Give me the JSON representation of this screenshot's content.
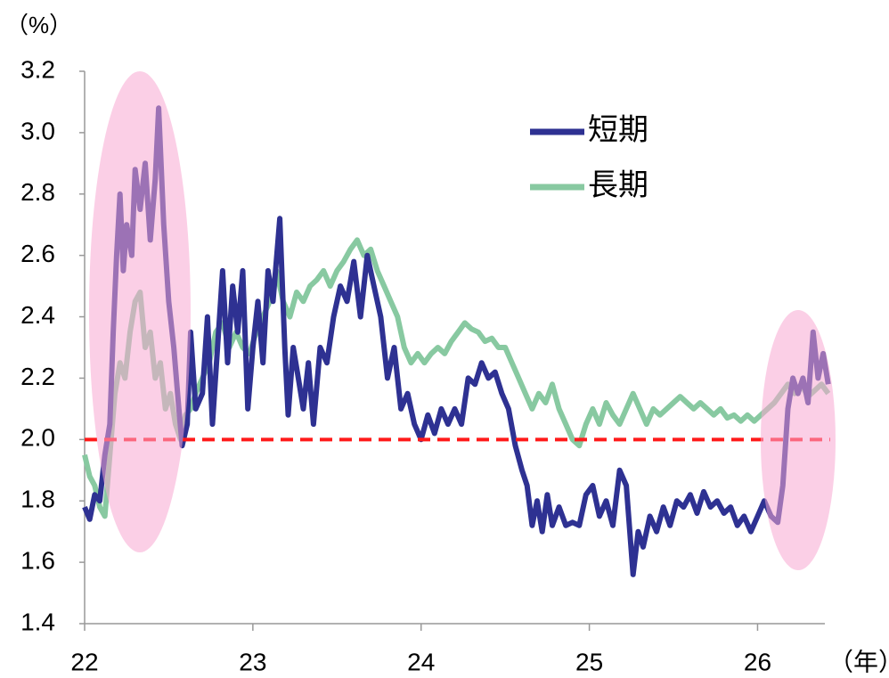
{
  "chart_data": {
    "type": "line",
    "y_label": "（%）",
    "x_label": "（年）",
    "xlim": [
      22,
      26.4
    ],
    "xticks": [
      22,
      23,
      24,
      25,
      26
    ],
    "ylim": [
      1.4,
      3.2
    ],
    "yticks": [
      {
        "value": 1.4,
        "label": "1.4"
      },
      {
        "value": 1.6,
        "label": "1.6"
      },
      {
        "value": 1.8,
        "label": "1.8"
      },
      {
        "value": 2,
        "label": "2.0"
      },
      {
        "value": 2.2,
        "label": "2.2"
      },
      {
        "value": 2.4,
        "label": "2.4"
      },
      {
        "value": 2.6,
        "label": "2.6"
      },
      {
        "value": 2.8,
        "label": "2.8"
      },
      {
        "value": 3,
        "label": "3.0"
      },
      {
        "value": 3.2,
        "label": "3.2"
      }
    ],
    "reference_line": {
      "value": 2,
      "color": "#ff1a1a"
    },
    "series": [
      {
        "name": "短期",
        "color": "#2e3192",
        "x": [
          22.0,
          22.03,
          22.06,
          22.09,
          22.12,
          22.15,
          22.17,
          22.19,
          22.21,
          22.23,
          22.25,
          22.28,
          22.3,
          22.33,
          22.36,
          22.39,
          22.42,
          22.44,
          22.47,
          22.5,
          22.53,
          22.56,
          22.58,
          22.61,
          22.63,
          22.66,
          22.7,
          22.73,
          22.76,
          22.79,
          22.82,
          22.85,
          22.88,
          22.91,
          22.94,
          22.97,
          23.0,
          23.03,
          23.06,
          23.09,
          23.12,
          23.16,
          23.19,
          23.21,
          23.24,
          23.27,
          23.3,
          23.33,
          23.36,
          23.4,
          23.44,
          23.48,
          23.52,
          23.56,
          23.6,
          23.64,
          23.68,
          23.72,
          23.76,
          23.8,
          23.84,
          23.88,
          23.92,
          23.96,
          24.0,
          24.04,
          24.08,
          24.12,
          24.16,
          24.2,
          24.24,
          24.28,
          24.32,
          24.36,
          24.4,
          24.44,
          24.48,
          24.52,
          24.56,
          24.6,
          24.63,
          24.66,
          24.69,
          24.72,
          24.75,
          24.78,
          24.82,
          24.86,
          24.9,
          24.94,
          24.98,
          25.02,
          25.06,
          25.1,
          25.14,
          25.18,
          25.22,
          25.26,
          25.29,
          25.32,
          25.36,
          25.4,
          25.44,
          25.48,
          25.52,
          25.56,
          25.6,
          25.64,
          25.68,
          25.72,
          25.76,
          25.8,
          25.84,
          25.88,
          25.92,
          25.96,
          26.0,
          26.04,
          26.08,
          26.12,
          26.15,
          26.18,
          26.21,
          26.24,
          26.27,
          26.3,
          26.33,
          26.36,
          26.39,
          26.42
        ],
        "values": [
          1.78,
          1.74,
          1.82,
          1.8,
          1.95,
          2.05,
          2.35,
          2.6,
          2.8,
          2.55,
          2.7,
          2.6,
          2.88,
          2.75,
          2.9,
          2.65,
          2.85,
          3.08,
          2.7,
          2.45,
          2.3,
          2.1,
          1.98,
          2.05,
          2.35,
          2.1,
          2.15,
          2.4,
          2.05,
          2.3,
          2.55,
          2.25,
          2.5,
          2.35,
          2.55,
          2.1,
          2.3,
          2.45,
          2.25,
          2.55,
          2.45,
          2.72,
          2.3,
          2.08,
          2.3,
          2.2,
          2.1,
          2.25,
          2.05,
          2.3,
          2.25,
          2.4,
          2.5,
          2.45,
          2.58,
          2.4,
          2.6,
          2.5,
          2.4,
          2.2,
          2.3,
          2.1,
          2.15,
          2.05,
          2.0,
          2.08,
          2.02,
          2.1,
          2.05,
          2.1,
          2.05,
          2.2,
          2.18,
          2.25,
          2.2,
          2.22,
          2.15,
          2.1,
          1.98,
          1.9,
          1.85,
          1.72,
          1.8,
          1.7,
          1.82,
          1.72,
          1.78,
          1.72,
          1.73,
          1.72,
          1.82,
          1.85,
          1.75,
          1.8,
          1.72,
          1.9,
          1.85,
          1.56,
          1.7,
          1.65,
          1.75,
          1.7,
          1.78,
          1.72,
          1.8,
          1.78,
          1.82,
          1.76,
          1.83,
          1.78,
          1.8,
          1.76,
          1.78,
          1.72,
          1.75,
          1.7,
          1.75,
          1.8,
          1.75,
          1.73,
          1.85,
          2.1,
          2.2,
          2.15,
          2.2,
          2.12,
          2.35,
          2.2,
          2.28,
          2.18
        ]
      },
      {
        "name": "長期",
        "color": "#88c9a1",
        "x": [
          22.0,
          22.03,
          22.06,
          22.09,
          22.12,
          22.15,
          22.18,
          22.21,
          22.24,
          22.27,
          22.3,
          22.33,
          22.36,
          22.39,
          22.42,
          22.45,
          22.48,
          22.51,
          22.54,
          22.57,
          22.6,
          22.63,
          22.66,
          22.7,
          22.74,
          22.78,
          22.82,
          22.86,
          22.9,
          22.94,
          22.98,
          23.02,
          23.06,
          23.1,
          23.14,
          23.18,
          23.22,
          23.26,
          23.3,
          23.34,
          23.38,
          23.42,
          23.46,
          23.5,
          23.54,
          23.58,
          23.62,
          23.66,
          23.7,
          23.74,
          23.78,
          23.82,
          23.86,
          23.9,
          23.94,
          23.98,
          24.02,
          24.06,
          24.1,
          24.14,
          24.18,
          24.22,
          24.26,
          24.3,
          24.34,
          24.38,
          24.42,
          24.46,
          24.5,
          24.54,
          24.58,
          24.62,
          24.66,
          24.7,
          24.74,
          24.78,
          24.82,
          24.86,
          24.9,
          24.94,
          24.98,
          25.02,
          25.06,
          25.1,
          25.14,
          25.18,
          25.22,
          25.26,
          25.3,
          25.34,
          25.38,
          25.42,
          25.46,
          25.5,
          25.54,
          25.58,
          25.62,
          25.66,
          25.7,
          25.74,
          25.78,
          25.82,
          25.86,
          25.9,
          25.94,
          25.98,
          26.02,
          26.06,
          26.1,
          26.14,
          26.18,
          26.22,
          26.26,
          26.3,
          26.34,
          26.38,
          26.42
        ],
        "values": [
          1.95,
          1.88,
          1.85,
          1.78,
          1.75,
          1.95,
          2.15,
          2.25,
          2.2,
          2.35,
          2.45,
          2.48,
          2.3,
          2.35,
          2.2,
          2.25,
          2.1,
          2.15,
          2.05,
          2.0,
          2.08,
          2.1,
          2.15,
          2.2,
          2.25,
          2.35,
          2.38,
          2.3,
          2.35,
          2.3,
          2.28,
          2.35,
          2.4,
          2.45,
          2.55,
          2.45,
          2.4,
          2.48,
          2.45,
          2.5,
          2.52,
          2.55,
          2.5,
          2.55,
          2.58,
          2.62,
          2.65,
          2.6,
          2.62,
          2.55,
          2.5,
          2.45,
          2.4,
          2.3,
          2.25,
          2.28,
          2.25,
          2.28,
          2.3,
          2.28,
          2.32,
          2.35,
          2.38,
          2.36,
          2.35,
          2.32,
          2.33,
          2.3,
          2.3,
          2.25,
          2.2,
          2.15,
          2.1,
          2.15,
          2.12,
          2.18,
          2.1,
          2.05,
          2.0,
          1.98,
          2.05,
          2.1,
          2.05,
          2.12,
          2.08,
          2.05,
          2.1,
          2.15,
          2.1,
          2.05,
          2.1,
          2.08,
          2.1,
          2.12,
          2.14,
          2.12,
          2.1,
          2.12,
          2.1,
          2.08,
          2.1,
          2.07,
          2.08,
          2.06,
          2.08,
          2.06,
          2.08,
          2.1,
          2.12,
          2.15,
          2.18,
          2.15,
          2.18,
          2.14,
          2.16,
          2.18,
          2.15
        ]
      }
    ]
  }
}
